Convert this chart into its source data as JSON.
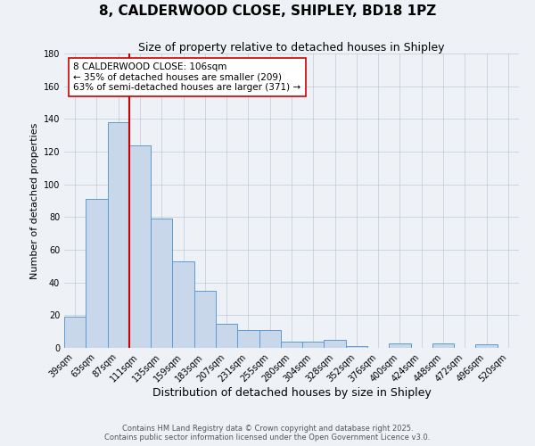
{
  "title": "8, CALDERWOOD CLOSE, SHIPLEY, BD18 1PZ",
  "subtitle": "Size of property relative to detached houses in Shipley",
  "xlabel": "Distribution of detached houses by size in Shipley",
  "ylabel": "Number of detached properties",
  "categories": [
    "39sqm",
    "63sqm",
    "87sqm",
    "111sqm",
    "135sqm",
    "159sqm",
    "183sqm",
    "207sqm",
    "231sqm",
    "255sqm",
    "280sqm",
    "304sqm",
    "328sqm",
    "352sqm",
    "376sqm",
    "400sqm",
    "424sqm",
    "448sqm",
    "472sqm",
    "496sqm",
    "520sqm"
  ],
  "values": [
    19,
    91,
    138,
    124,
    79,
    53,
    35,
    15,
    11,
    11,
    4,
    4,
    5,
    1,
    0,
    3,
    0,
    3,
    0,
    2,
    0
  ],
  "bar_color": "#c8d8ea",
  "bar_edge_color": "#5b9bd5",
  "vline_color": "#cc0000",
  "ylim": [
    0,
    180
  ],
  "yticks": [
    0,
    20,
    40,
    60,
    80,
    100,
    120,
    140,
    160,
    180
  ],
  "annotation_text": "8 CALDERWOOD CLOSE: 106sqm\n← 35% of detached houses are smaller (209)\n63% of semi-detached houses are larger (371) →",
  "annotation_box_color": "#ffffff",
  "annotation_box_edge": "#cc0000",
  "footnote1": "Contains HM Land Registry data © Crown copyright and database right 2025.",
  "footnote2": "Contains public sector information licensed under the Open Government Licence v3.0.",
  "background_color": "#eef2f7",
  "grid_color": "#b0b8cc",
  "title_fontsize": 11,
  "subtitle_fontsize": 9,
  "xlabel_fontsize": 9,
  "ylabel_fontsize": 8,
  "tick_fontsize": 7,
  "annotation_fontsize": 7.5,
  "footnote_fontsize": 6
}
